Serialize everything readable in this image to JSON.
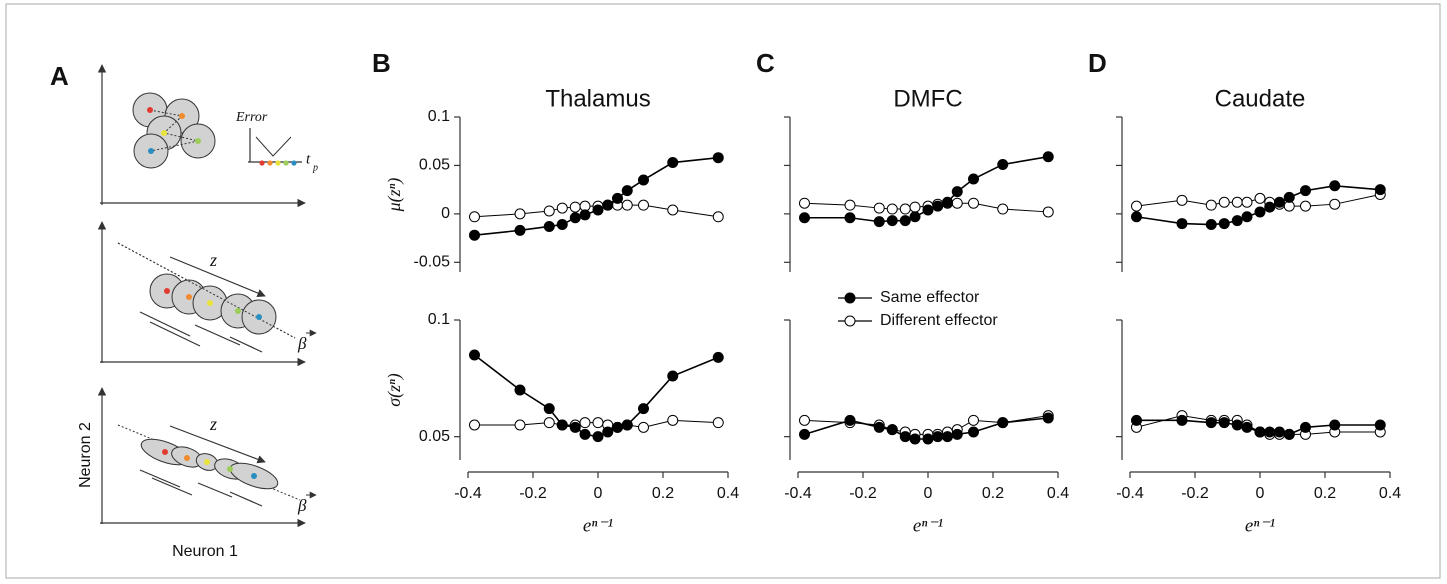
{
  "panel_labels": [
    "A",
    "B",
    "C",
    "D"
  ],
  "diagram": {
    "error_label": "Error",
    "tp_label": "t",
    "tp_sub": "p",
    "z_labels": [
      "z",
      "z"
    ],
    "beta_labels": [
      "β",
      "β"
    ],
    "y_axis": "Neuron 2",
    "x_axis": "Neuron 1"
  },
  "chart_data": [
    {
      "type": "line",
      "panel": "B",
      "title": "Thalamus",
      "ylabel": "μ(zⁿ)",
      "ytick_labels": true,
      "x": [
        -0.38,
        -0.24,
        -0.15,
        -0.11,
        -0.07,
        -0.04,
        0,
        0.03,
        0.06,
        0.09,
        0.14,
        0.23,
        0.37
      ],
      "xlim": [
        -0.4,
        0.4
      ],
      "ylim": [
        -0.06,
        0.1
      ],
      "yticks": [
        -0.05,
        0,
        0.05,
        0.1
      ],
      "series": [
        {
          "color": "#000000",
          "marker_fill": "#000000",
          "values": [
            -0.022,
            -0.017,
            -0.013,
            -0.011,
            -0.004,
            -0.001,
            0.004,
            0.009,
            0.016,
            0.024,
            0.035,
            0.053,
            0.058
          ]
        },
        {
          "color": "#000000",
          "marker_fill": "#ffffff",
          "values": [
            -0.003,
            0,
            0.003,
            0.006,
            0.007,
            0.008,
            0.008,
            0.009,
            0.009,
            0.009,
            0.009,
            0.004,
            -0.003
          ]
        }
      ]
    },
    {
      "type": "line",
      "ylabel": "σ(zⁿ)",
      "xlabel": "eⁿ⁻¹",
      "ytick_labels": true,
      "x": [
        -0.38,
        -0.24,
        -0.15,
        -0.11,
        -0.07,
        -0.04,
        0,
        0.03,
        0.06,
        0.09,
        0.14,
        0.23,
        0.37
      ],
      "xlim": [
        -0.4,
        0.4
      ],
      "xticks": [
        -0.4,
        -0.2,
        0,
        0.2,
        0.4
      ],
      "ylim": [
        0.04,
        0.1
      ],
      "yticks": [
        0.05,
        0.1
      ],
      "series": [
        {
          "color": "#000000",
          "marker_fill": "#000000",
          "values": [
            0.085,
            0.07,
            0.062,
            0.055,
            0.054,
            0.051,
            0.05,
            0.052,
            0.054,
            0.055,
            0.062,
            0.076,
            0.084
          ]
        },
        {
          "color": "#000000",
          "marker_fill": "#ffffff",
          "values": [
            0.055,
            0.055,
            0.056,
            0.055,
            0.055,
            0.056,
            0.056,
            0.055,
            0.054,
            0.055,
            0.054,
            0.057,
            0.056
          ]
        }
      ]
    },
    {
      "type": "line",
      "panel": "C",
      "title": "DMFC",
      "ytick_labels": false,
      "x": [
        -0.38,
        -0.24,
        -0.15,
        -0.11,
        -0.07,
        -0.04,
        0,
        0.03,
        0.06,
        0.09,
        0.14,
        0.23,
        0.37
      ],
      "xlim": [
        -0.4,
        0.4
      ],
      "ylim": [
        -0.06,
        0.1
      ],
      "yticks": [
        -0.05,
        0,
        0.05,
        0.1
      ],
      "series": [
        {
          "color": "#000000",
          "marker_fill": "#000000",
          "values": [
            -0.004,
            -0.004,
            -0.008,
            -0.007,
            -0.007,
            -0.003,
            0.004,
            0.008,
            0.012,
            0.023,
            0.036,
            0.051,
            0.059
          ]
        },
        {
          "color": "#000000",
          "marker_fill": "#ffffff",
          "values": [
            0.011,
            0.009,
            0.006,
            0.005,
            0.005,
            0.007,
            0.008,
            0.01,
            0.011,
            0.011,
            0.011,
            0.005,
            0.002
          ]
        }
      ]
    },
    {
      "type": "line",
      "xlabel": "eⁿ⁻¹",
      "ytick_labels": false,
      "legend": "upper left",
      "x": [
        -0.38,
        -0.24,
        -0.15,
        -0.11,
        -0.07,
        -0.04,
        0,
        0.03,
        0.06,
        0.09,
        0.14,
        0.23,
        0.37
      ],
      "xlim": [
        -0.4,
        0.4
      ],
      "xticks": [
        -0.4,
        -0.2,
        0,
        0.2,
        0.4
      ],
      "ylim": [
        0.04,
        0.1
      ],
      "yticks": [
        0.05,
        0.1
      ],
      "series": [
        {
          "name": "Same effector",
          "color": "#000000",
          "marker_fill": "#000000",
          "values": [
            0.051,
            0.057,
            0.054,
            0.053,
            0.05,
            0.049,
            0.049,
            0.05,
            0.05,
            0.051,
            0.052,
            0.056,
            0.058
          ]
        },
        {
          "name": "Different effector",
          "color": "#000000",
          "marker_fill": "#ffffff",
          "values": [
            0.057,
            0.056,
            0.055,
            0.053,
            0.052,
            0.051,
            0.051,
            0.051,
            0.052,
            0.053,
            0.057,
            0.056,
            0.059
          ]
        }
      ]
    },
    {
      "type": "line",
      "panel": "D",
      "title": "Caudate",
      "ytick_labels": false,
      "x": [
        -0.38,
        -0.24,
        -0.15,
        -0.11,
        -0.07,
        -0.04,
        0,
        0.03,
        0.06,
        0.09,
        0.14,
        0.23,
        0.37
      ],
      "xlim": [
        -0.4,
        0.4
      ],
      "ylim": [
        -0.06,
        0.1
      ],
      "yticks": [
        -0.05,
        0,
        0.05,
        0.1
      ],
      "series": [
        {
          "color": "#000000",
          "marker_fill": "#000000",
          "values": [
            -0.003,
            -0.01,
            -0.011,
            -0.01,
            -0.007,
            -0.003,
            0.002,
            0.007,
            0.012,
            0.017,
            0.024,
            0.029,
            0.025
          ]
        },
        {
          "color": "#000000",
          "marker_fill": "#ffffff",
          "values": [
            0.008,
            0.014,
            0.009,
            0.012,
            0.012,
            0.012,
            0.016,
            0.012,
            0.01,
            0.008,
            0.008,
            0.01,
            0.02
          ]
        }
      ]
    },
    {
      "type": "line",
      "xlabel": "eⁿ⁻¹",
      "ytick_labels": false,
      "x": [
        -0.38,
        -0.24,
        -0.15,
        -0.11,
        -0.07,
        -0.04,
        0,
        0.03,
        0.06,
        0.09,
        0.14,
        0.23,
        0.37
      ],
      "xlim": [
        -0.4,
        0.4
      ],
      "xticks": [
        -0.4,
        -0.2,
        0,
        0.2,
        0.4
      ],
      "ylim": [
        0.04,
        0.1
      ],
      "yticks": [
        0.05,
        0.1
      ],
      "series": [
        {
          "color": "#000000",
          "marker_fill": "#000000",
          "values": [
            0.057,
            0.057,
            0.056,
            0.056,
            0.055,
            0.054,
            0.052,
            0.052,
            0.052,
            0.051,
            0.054,
            0.055,
            0.055
          ]
        },
        {
          "color": "#000000",
          "marker_fill": "#ffffff",
          "values": [
            0.054,
            0.059,
            0.057,
            0.057,
            0.057,
            0.055,
            0.052,
            0.051,
            0.051,
            0.051,
            0.051,
            0.052,
            0.052
          ]
        }
      ]
    }
  ]
}
